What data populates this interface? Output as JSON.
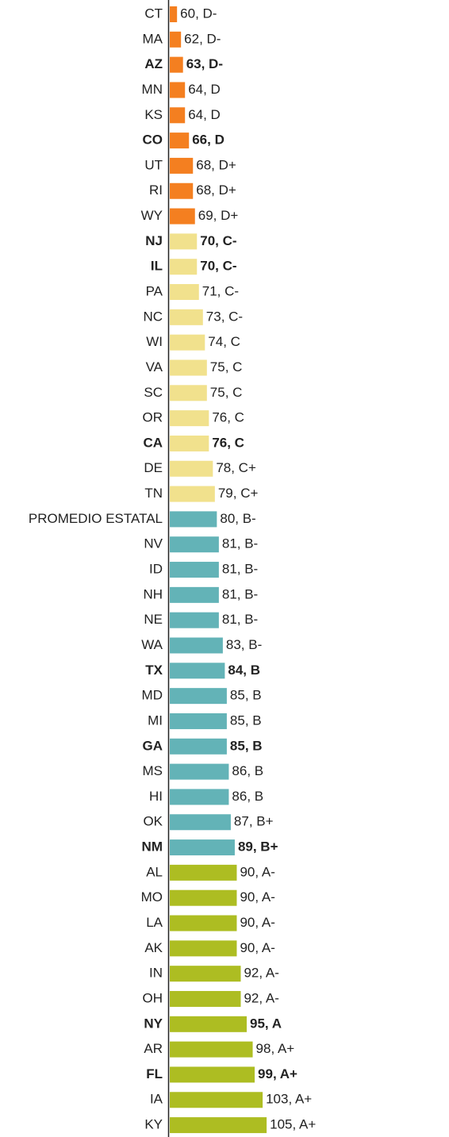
{
  "chart_data": {
    "type": "bar",
    "orientation": "horizontal",
    "categories": [
      "CT",
      "MA",
      "AZ",
      "MN",
      "KS",
      "CO",
      "UT",
      "RI",
      "WY",
      "NJ",
      "IL",
      "PA",
      "NC",
      "WI",
      "VA",
      "SC",
      "OR",
      "CA",
      "DE",
      "TN",
      "PROMEDIO ESTATAL",
      "NV",
      "ID",
      "NH",
      "NE",
      "WA",
      "TX",
      "MD",
      "MI",
      "GA",
      "MS",
      "HI",
      "OK",
      "NM",
      "AL",
      "MO",
      "LA",
      "AK",
      "IN",
      "OH",
      "NY",
      "AR",
      "FL",
      "IA",
      "KY"
    ],
    "values": [
      60,
      62,
      63,
      64,
      64,
      66,
      68,
      68,
      69,
      70,
      70,
      71,
      73,
      74,
      75,
      75,
      76,
      76,
      78,
      79,
      80,
      81,
      81,
      81,
      81,
      83,
      84,
      85,
      85,
      85,
      86,
      86,
      87,
      89,
      90,
      90,
      90,
      90,
      92,
      92,
      95,
      98,
      99,
      103,
      105
    ],
    "value_labels": [
      "60, D-",
      "62, D-",
      "63, D-",
      "64, D",
      "64, D",
      "66, D",
      "68, D+",
      "68, D+",
      "69, D+",
      "70, C-",
      "70, C-",
      "71, C-",
      "73, C-",
      "74, C",
      "75, C",
      "75, C",
      "76, C",
      "76, C",
      "78, C+",
      "79, C+",
      "80, B-",
      "81, B-",
      "81, B-",
      "81, B-",
      "81, B-",
      "83, B-",
      "84, B",
      "85, B",
      "85, B",
      "85, B",
      "86, B",
      "86, B",
      "87, B+",
      "89, B+",
      "90, A-",
      "90, A-",
      "90, A-",
      "90, A-",
      "92, A-",
      "92, A-",
      "95, A",
      "98, A+",
      "99, A+",
      "103, A+",
      "105, A+"
    ],
    "bold": [
      false,
      false,
      true,
      false,
      false,
      true,
      false,
      false,
      false,
      true,
      true,
      false,
      false,
      false,
      false,
      false,
      false,
      true,
      false,
      false,
      false,
      false,
      false,
      false,
      false,
      false,
      true,
      false,
      false,
      true,
      false,
      false,
      false,
      true,
      false,
      false,
      false,
      false,
      false,
      false,
      true,
      false,
      true,
      false,
      false
    ],
    "colors": [
      "#f47f20",
      "#f47f20",
      "#f47f20",
      "#f47f20",
      "#f47f20",
      "#f47f20",
      "#f47f20",
      "#f47f20",
      "#f47f20",
      "#f1e18d",
      "#f1e18d",
      "#f1e18d",
      "#f1e18d",
      "#f1e18d",
      "#f1e18d",
      "#f1e18d",
      "#f1e18d",
      "#f1e18d",
      "#f1e18d",
      "#f1e18d",
      "#63b3b7",
      "#63b3b7",
      "#63b3b7",
      "#63b3b7",
      "#63b3b7",
      "#63b3b7",
      "#63b3b7",
      "#63b3b7",
      "#63b3b7",
      "#63b3b7",
      "#63b3b7",
      "#63b3b7",
      "#63b3b7",
      "#63b3b7",
      "#adbd22",
      "#adbd22",
      "#adbd22",
      "#adbd22",
      "#adbd22",
      "#adbd22",
      "#adbd22",
      "#adbd22",
      "#adbd22",
      "#adbd22",
      "#adbd22"
    ]
  }
}
